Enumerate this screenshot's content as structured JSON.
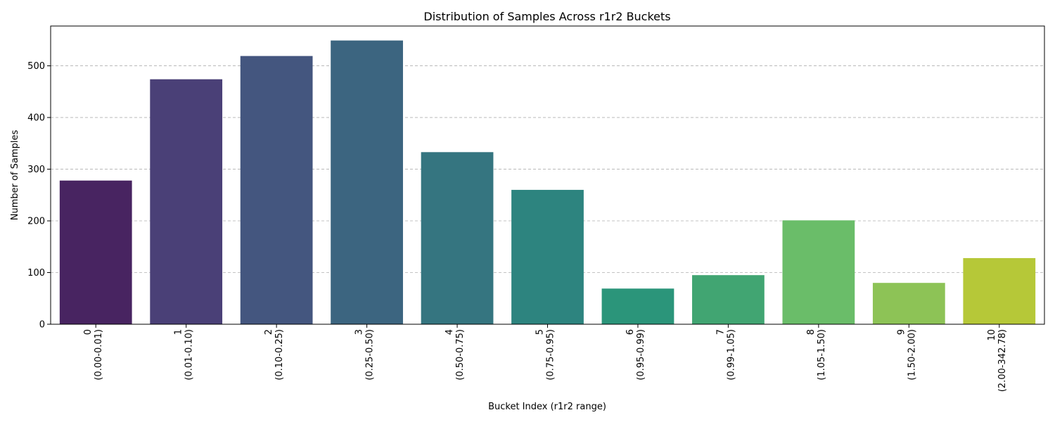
{
  "chart_data": {
    "type": "bar",
    "title": "Distribution of Samples Across r1r2 Buckets",
    "xlabel": "Bucket Index (r1r2 range)",
    "ylabel": "Number of Samples",
    "ylim": [
      0,
      577
    ],
    "yticks": [
      0,
      100,
      200,
      300,
      400,
      500
    ],
    "grid": "y-dashed",
    "categories": [
      {
        "index": "0",
        "range": "(0.00-0.01)"
      },
      {
        "index": "1",
        "range": "(0.01-0.10)"
      },
      {
        "index": "2",
        "range": "(0.10-0.25)"
      },
      {
        "index": "3",
        "range": "(0.25-0.50)"
      },
      {
        "index": "4",
        "range": "(0.50-0.75)"
      },
      {
        "index": "5",
        "range": "(0.75-0.95)"
      },
      {
        "index": "6",
        "range": "(0.95-0.99)"
      },
      {
        "index": "7",
        "range": "(0.99-1.05)"
      },
      {
        "index": "8",
        "range": "(1.05-1.50)"
      },
      {
        "index": "9",
        "range": "(1.50-2.00)"
      },
      {
        "index": "10",
        "range": "(2.00-342.78)"
      }
    ],
    "values": [
      278,
      474,
      519,
      549,
      333,
      260,
      69,
      95,
      201,
      80,
      128
    ],
    "colors": [
      "#482461",
      "#4a4077",
      "#44567f",
      "#3c6580",
      "#357580",
      "#2d847f",
      "#2b957a",
      "#41a572",
      "#6abd69",
      "#8dc356",
      "#b6c838"
    ]
  }
}
